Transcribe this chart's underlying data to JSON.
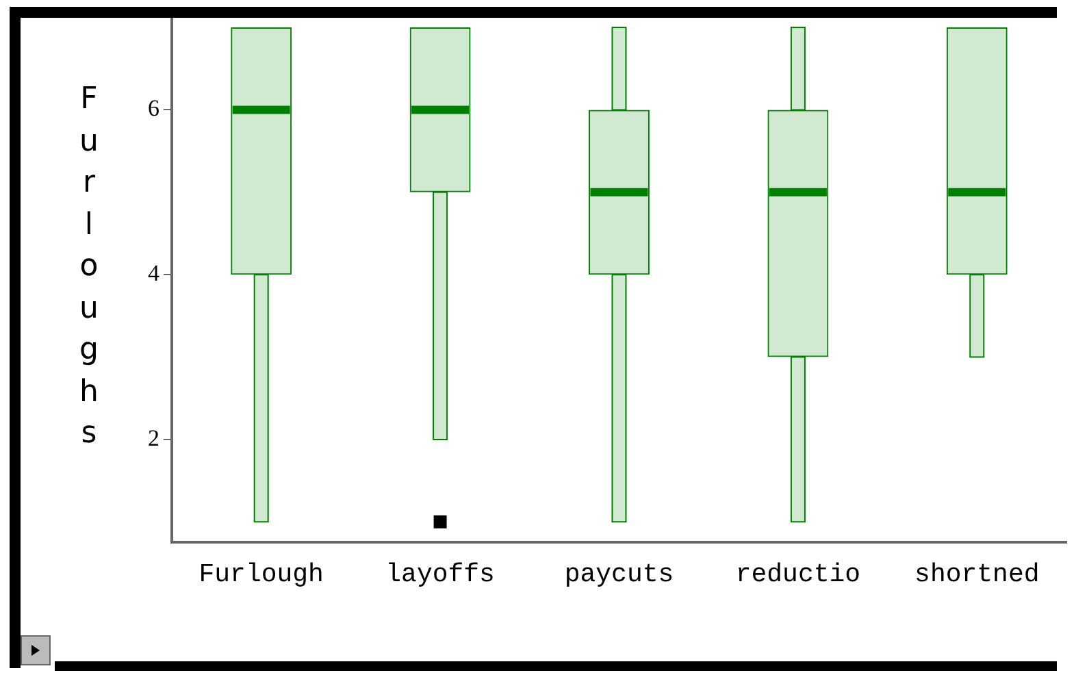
{
  "chart_data": {
    "type": "box",
    "ylabel": "Furloughs",
    "categories": [
      "Furlough",
      "layoffs",
      "paycuts",
      "reductio",
      "shortned"
    ],
    "boxes": [
      {
        "low": 1,
        "q1": 4,
        "median": 6,
        "q3": 7,
        "high": 7
      },
      {
        "low": 2,
        "q1": 5,
        "median": 6,
        "q3": 7,
        "high": 7,
        "outliers": [
          1
        ]
      },
      {
        "low": 1,
        "q1": 4,
        "median": 5,
        "q3": 6,
        "high": 7
      },
      {
        "low": 1,
        "q1": 3,
        "median": 5,
        "q3": 6,
        "high": 7
      },
      {
        "low": 3,
        "q1": 4,
        "median": 5,
        "q3": 7,
        "high": 7
      }
    ],
    "color": "#008000",
    "ylim": [
      0.75,
      7.1
    ],
    "yticks": [
      2,
      4,
      6
    ],
    "grid": false
  }
}
